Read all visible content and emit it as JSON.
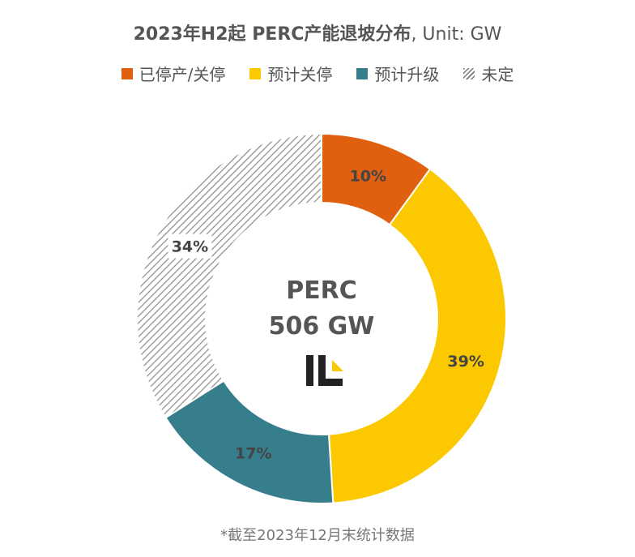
{
  "chart_data": {
    "type": "pie",
    "variant": "donut",
    "title": "2023年H2起 PERC产能退坡分布",
    "subtitle": ", Unit: GW",
    "center_label": [
      "PERC",
      "506 GW"
    ],
    "legend_placement": "top",
    "slices": [
      {
        "name": "已停产/关停",
        "value": 10,
        "label": "10%",
        "color": "#E06010",
        "pattern": "solid"
      },
      {
        "name": "预计关停",
        "value": 39,
        "label": "39%",
        "color": "#FCC800",
        "pattern": "solid"
      },
      {
        "name": "预计升级",
        "value": 17,
        "label": "17%",
        "color": "#377E8C",
        "pattern": "solid"
      },
      {
        "name": "未定",
        "value": 34,
        "label": "34%",
        "color": "#8A8A8A",
        "pattern": "hatch"
      }
    ],
    "footnote": "*截至2023年12月末统计数据"
  }
}
